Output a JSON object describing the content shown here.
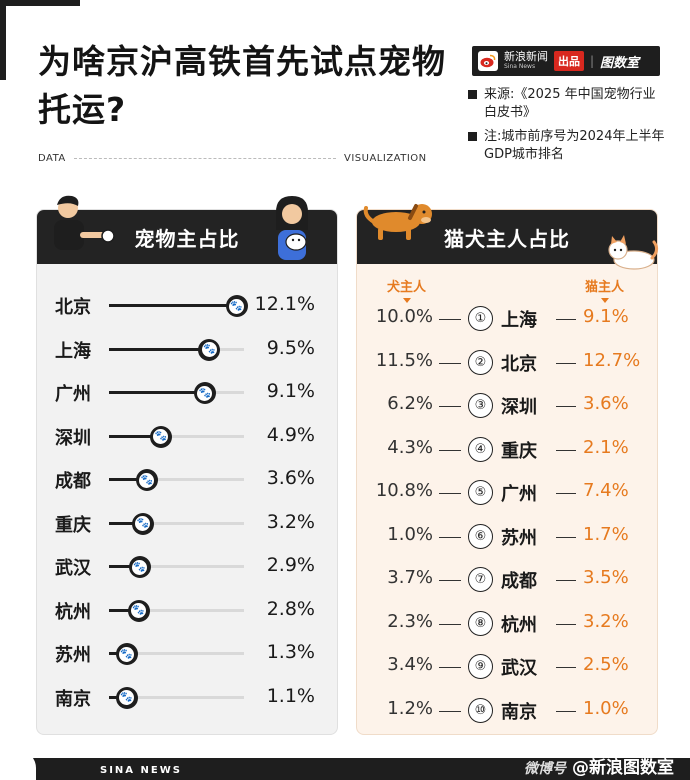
{
  "title": "为啥京沪高铁首先试点宠物托运?",
  "subtitle_left": "DATA",
  "subtitle_right": "VISUALIZATION",
  "brand": {
    "logo": "sina",
    "name": "新浪新闻",
    "name_en": "Sina News",
    "badge": "出品",
    "separator": "|",
    "product": "图数室"
  },
  "notes": [
    "来源:《2025 年中国宠物行业白皮书》",
    "注:城市前序号为2024年上半年GDP城市排名"
  ],
  "footer": {
    "left": "SINA NEWS",
    "weibo": "微博号",
    "right": "@新浪图数室"
  },
  "colors": {
    "accent": "#e67a1f",
    "dark": "#1e1e1e"
  },
  "chart_data": [
    {
      "type": "bar",
      "title": "宠物主占比",
      "categories": [
        "北京",
        "上海",
        "广州",
        "深圳",
        "成都",
        "重庆",
        "武汉",
        "杭州",
        "苏州",
        "南京"
      ],
      "values": [
        12.1,
        9.5,
        9.1,
        4.9,
        3.6,
        3.2,
        2.9,
        2.8,
        1.3,
        1.1
      ],
      "labels": [
        "12.1%",
        "9.5%",
        "9.1%",
        "4.9%",
        "3.6%",
        "3.2%",
        "2.9%",
        "2.8%",
        "1.3%",
        "1.1%"
      ],
      "xlim": [
        0,
        12.8
      ]
    },
    {
      "type": "table",
      "title": "猫犬主人占比",
      "columns": [
        "犬主人",
        "猫主人"
      ],
      "rank_symbols": [
        "①",
        "②",
        "③",
        "④",
        "⑤",
        "⑥",
        "⑦",
        "⑧",
        "⑨",
        "⑩"
      ],
      "rows": [
        {
          "rank": 1,
          "city": "上海",
          "dog": "10.0%",
          "cat": "9.1%"
        },
        {
          "rank": 2,
          "city": "北京",
          "dog": "11.5%",
          "cat": "12.7%"
        },
        {
          "rank": 3,
          "city": "深圳",
          "dog": "6.2%",
          "cat": "3.6%"
        },
        {
          "rank": 4,
          "city": "重庆",
          "dog": "4.3%",
          "cat": "2.1%"
        },
        {
          "rank": 5,
          "city": "广州",
          "dog": "10.8%",
          "cat": "7.4%"
        },
        {
          "rank": 6,
          "city": "苏州",
          "dog": "1.0%",
          "cat": "1.7%"
        },
        {
          "rank": 7,
          "city": "成都",
          "dog": "3.7%",
          "cat": "3.5%"
        },
        {
          "rank": 8,
          "city": "杭州",
          "dog": "2.3%",
          "cat": "3.2%"
        },
        {
          "rank": 9,
          "city": "武汉",
          "dog": "3.4%",
          "cat": "2.5%"
        },
        {
          "rank": 10,
          "city": "南京",
          "dog": "1.2%",
          "cat": "1.0%"
        }
      ]
    }
  ]
}
